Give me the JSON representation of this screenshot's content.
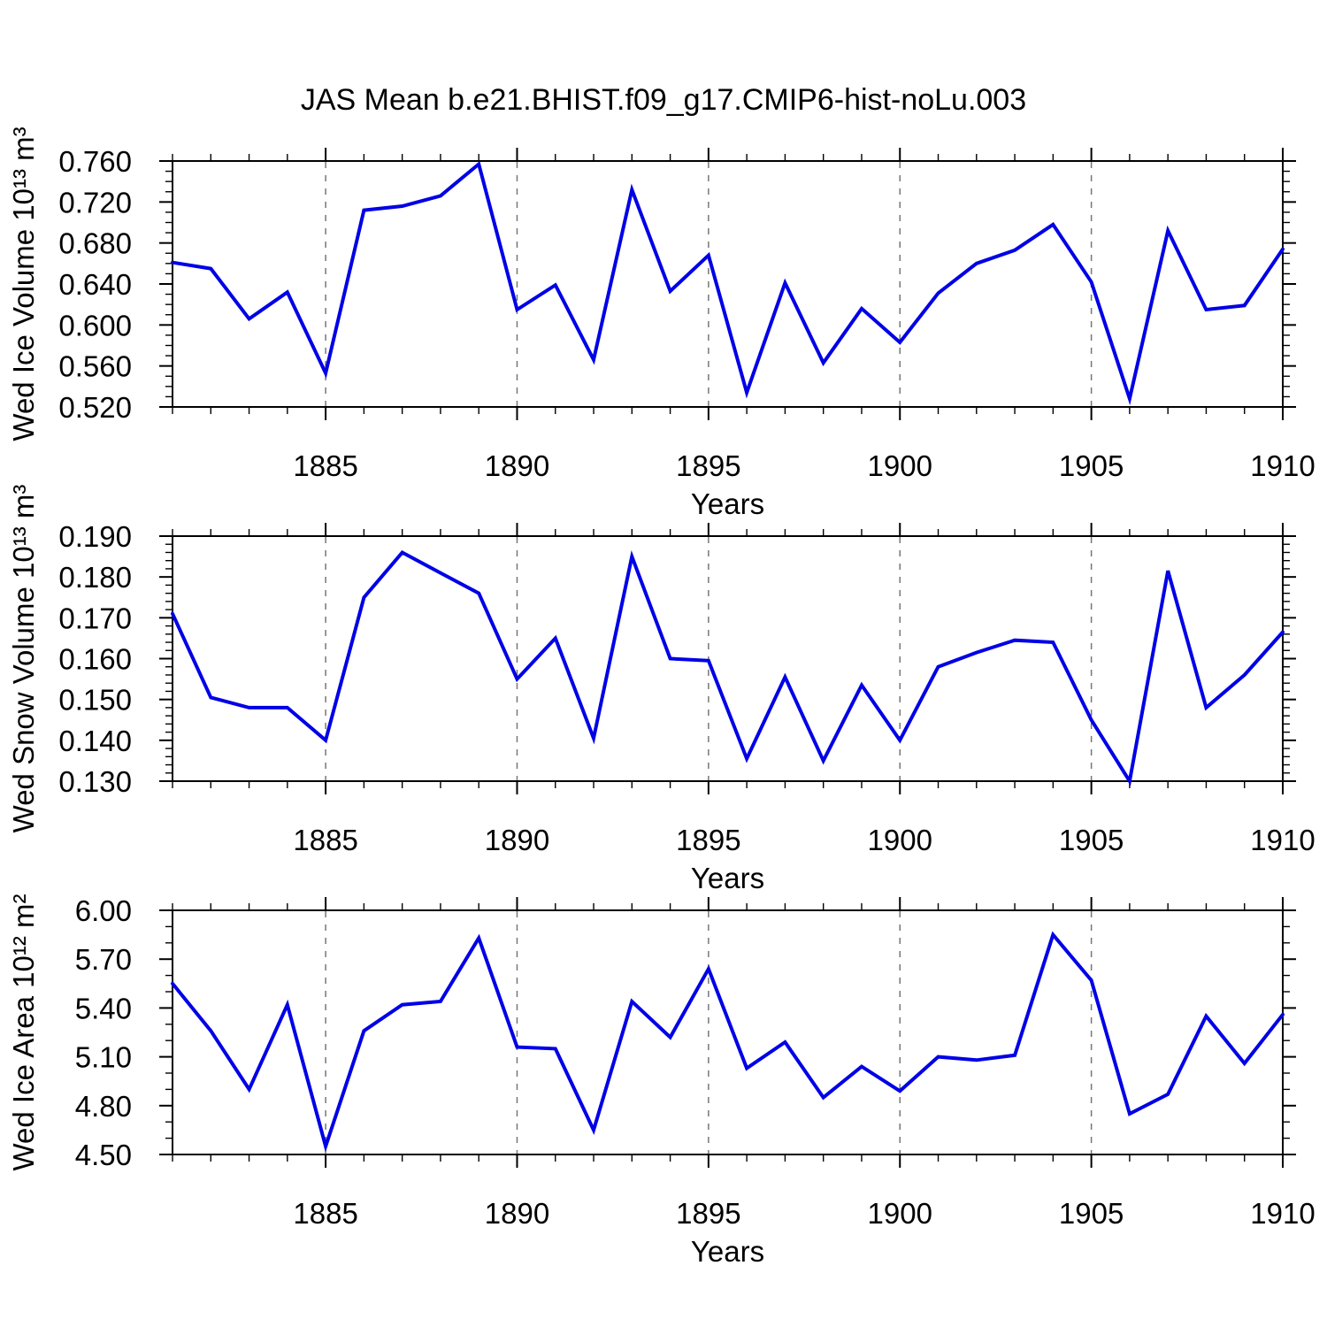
{
  "title": "JAS Mean b.e21.BHIST.f09_g17.CMIP6-hist-noLu.003",
  "colors": {
    "line": "#0000e6",
    "frame": "#000000",
    "grid": "#777777",
    "text": "#000000",
    "background": "#ffffff"
  },
  "chart_data": [
    {
      "type": "line",
      "ylabel": "Wed Ice Volume 10¹³ m³",
      "xlabel": "Years",
      "x": [
        1881,
        1882,
        1883,
        1884,
        1885,
        1886,
        1887,
        1888,
        1889,
        1890,
        1891,
        1892,
        1893,
        1894,
        1895,
        1896,
        1897,
        1898,
        1899,
        1900,
        1901,
        1902,
        1903,
        1904,
        1905,
        1906,
        1907,
        1908,
        1909,
        1910
      ],
      "values": [
        0.661,
        0.655,
        0.606,
        0.632,
        0.553,
        0.712,
        0.716,
        0.726,
        0.757,
        0.615,
        0.639,
        0.566,
        0.732,
        0.633,
        0.668,
        0.534,
        0.641,
        0.563,
        0.616,
        0.583,
        0.631,
        0.66,
        0.673,
        0.698,
        0.642,
        0.528,
        0.692,
        0.615,
        0.619,
        0.674
      ],
      "xlim": [
        1881,
        1910
      ],
      "ylim": [
        0.52,
        0.76
      ],
      "xticks": [
        1885,
        1890,
        1895,
        1900,
        1905,
        1910
      ],
      "ytick_step": 0.04,
      "yminor_step": 0.01,
      "ydecimals": 3,
      "grid": "vertical-dashed",
      "legend": "none"
    },
    {
      "type": "line",
      "ylabel": "Wed Snow Volume 10¹³ m³",
      "xlabel": "Years",
      "x": [
        1881,
        1882,
        1883,
        1884,
        1885,
        1886,
        1887,
        1888,
        1889,
        1890,
        1891,
        1892,
        1893,
        1894,
        1895,
        1896,
        1897,
        1898,
        1899,
        1900,
        1901,
        1902,
        1903,
        1904,
        1905,
        1906,
        1907,
        1908,
        1909,
        1910
      ],
      "values": [
        0.171,
        0.1505,
        0.148,
        0.148,
        0.14,
        0.175,
        0.186,
        0.181,
        0.176,
        0.155,
        0.165,
        0.1405,
        0.185,
        0.16,
        0.1595,
        0.1355,
        0.1555,
        0.135,
        0.1535,
        0.14,
        0.158,
        0.1615,
        0.1645,
        0.164,
        0.145,
        0.13,
        0.1815,
        0.148,
        0.156,
        0.1665
      ],
      "xlim": [
        1881,
        1910
      ],
      "ylim": [
        0.13,
        0.19
      ],
      "xticks": [
        1885,
        1890,
        1895,
        1900,
        1905,
        1910
      ],
      "ytick_step": 0.01,
      "yminor_step": 0.002,
      "ydecimals": 3,
      "grid": "vertical-dashed",
      "legend": "none"
    },
    {
      "type": "line",
      "ylabel": "Wed Ice Area 10¹² m²",
      "xlabel": "Years",
      "x": [
        1881,
        1882,
        1883,
        1884,
        1885,
        1886,
        1887,
        1888,
        1889,
        1890,
        1891,
        1892,
        1893,
        1894,
        1895,
        1896,
        1897,
        1898,
        1899,
        1900,
        1901,
        1902,
        1903,
        1904,
        1905,
        1906,
        1907,
        1908,
        1909,
        1910
      ],
      "values": [
        5.55,
        5.26,
        4.9,
        5.42,
        4.55,
        5.26,
        5.42,
        5.44,
        5.83,
        5.16,
        5.15,
        4.65,
        5.44,
        5.22,
        5.64,
        5.03,
        5.19,
        4.85,
        5.04,
        4.89,
        5.1,
        5.08,
        5.11,
        5.85,
        5.57,
        4.75,
        4.87,
        5.35,
        5.06,
        5.36
      ],
      "xlim": [
        1881,
        1910
      ],
      "ylim": [
        4.5,
        6.0
      ],
      "xticks": [
        1885,
        1890,
        1895,
        1900,
        1905,
        1910
      ],
      "ytick_step": 0.3,
      "yminor_step": 0.1,
      "ydecimals": 2,
      "grid": "vertical-dashed",
      "legend": "none"
    }
  ]
}
